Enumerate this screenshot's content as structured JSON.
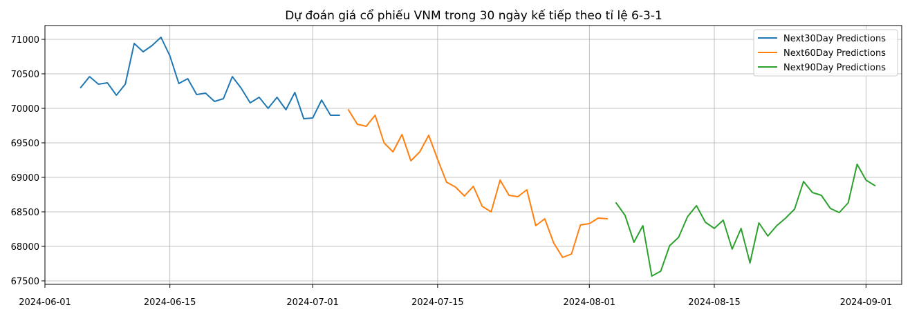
{
  "chart_data": {
    "type": "line",
    "title": "Dự đoán giá cổ phiếu VNM trong 30 ngày kế tiếp theo tỉ lệ 6-3-1",
    "xlabel": "",
    "ylabel": "",
    "grid": true,
    "legend_position": "top-right",
    "x_type": "date",
    "xlim": [
      "2024-06-01",
      "2024-09-05"
    ],
    "ylim": [
      67450,
      71200
    ],
    "x_ticks": [
      "2024-06-01",
      "2024-06-15",
      "2024-07-01",
      "2024-07-15",
      "2024-08-01",
      "2024-08-15",
      "2024-09-01"
    ],
    "y_ticks": [
      67500,
      68000,
      68500,
      69000,
      69500,
      70000,
      70500,
      71000
    ],
    "series": [
      {
        "name": "Next30Day Predictions",
        "color": "#1f77b4",
        "start_date": "2024-06-05",
        "values": [
          70300,
          70460,
          70350,
          70370,
          70190,
          70350,
          70940,
          70820,
          70910,
          71030,
          70760,
          70360,
          70430,
          70200,
          70220,
          70100,
          70140,
          70460,
          70290,
          70080,
          70160,
          70000,
          70160,
          69980,
          70230,
          69850,
          69860,
          70120,
          69900,
          69900
        ]
      },
      {
        "name": "Next60Day Predictions",
        "color": "#ff7f0e",
        "start_date": "2024-07-05",
        "values": [
          69980,
          69770,
          69740,
          69900,
          69500,
          69370,
          69620,
          69240,
          69370,
          69610,
          69260,
          68930,
          68860,
          68730,
          68870,
          68580,
          68500,
          68960,
          68740,
          68720,
          68820,
          68300,
          68400,
          68050,
          67840,
          67890,
          68310,
          68330,
          68410,
          68400
        ]
      },
      {
        "name": "Next90Day Predictions",
        "color": "#2ca02c",
        "start_date": "2024-08-04",
        "values": [
          68630,
          68450,
          68060,
          68300,
          67570,
          67640,
          68010,
          68130,
          68430,
          68590,
          68350,
          68260,
          68380,
          67960,
          68260,
          67760,
          68340,
          68150,
          68300,
          68410,
          68540,
          68940,
          68780,
          68740,
          68550,
          68490,
          68630,
          69190,
          68960,
          68880
        ]
      }
    ]
  }
}
